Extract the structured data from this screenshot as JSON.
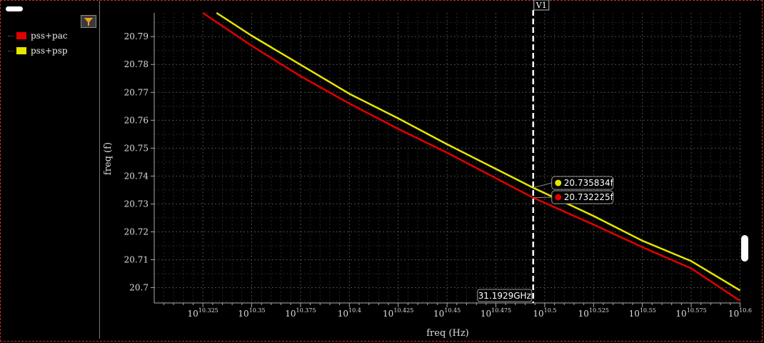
{
  "legend": {
    "items": [
      {
        "label": "pss+pac",
        "color": "#e00000"
      },
      {
        "label": "pss+psp",
        "color": "#e6e600"
      }
    ]
  },
  "chart_data": {
    "type": "line",
    "xlabel": "freq (Hz)",
    "ylabel": "freq (f)",
    "x_scale": "log10",
    "x_tick_base": "10",
    "x_ticks": [
      {
        "exp": 10.325,
        "label": "10.325"
      },
      {
        "exp": 10.35,
        "label": "10.35"
      },
      {
        "exp": 10.375,
        "label": "10.375"
      },
      {
        "exp": 10.4,
        "label": "10.4"
      },
      {
        "exp": 10.425,
        "label": "10.425"
      },
      {
        "exp": 10.45,
        "label": "10.45"
      },
      {
        "exp": 10.475,
        "label": "10.475"
      },
      {
        "exp": 10.5,
        "label": "10.5"
      },
      {
        "exp": 10.525,
        "label": "10.525"
      },
      {
        "exp": 10.55,
        "label": "10.55"
      },
      {
        "exp": 10.575,
        "label": "10.575"
      },
      {
        "exp": 10.6,
        "label": "10.6"
      }
    ],
    "xlim_exp": [
      10.3001,
      10.6002
    ],
    "y_ticks": [
      "20.79",
      "20.78",
      "20.77",
      "20.76",
      "20.75",
      "20.74",
      "20.73",
      "20.72",
      "20.71",
      "20.7"
    ],
    "y_tick_values": [
      20.79,
      20.78,
      20.77,
      20.76,
      20.75,
      20.74,
      20.73,
      20.72,
      20.71,
      20.7
    ],
    "ylim": [
      20.6945,
      20.7985
    ],
    "grid": true,
    "series": [
      {
        "name": "pss+pac",
        "color": "#e00000",
        "x_exp": [
          10.325,
          10.35,
          10.375,
          10.4,
          10.425,
          10.45,
          10.4941,
          10.525,
          10.55,
          10.575,
          10.6
        ],
        "values": [
          20.7985,
          20.7867,
          20.7758,
          20.766,
          20.7569,
          20.7484,
          20.73223,
          20.7226,
          20.7145,
          20.7069,
          20.6953
        ]
      },
      {
        "name": "pss+psp",
        "color": "#e6e600",
        "x_exp": [
          10.332,
          10.35,
          10.375,
          10.4,
          10.425,
          10.45,
          10.4941,
          10.525,
          10.55,
          10.575,
          10.6
        ],
        "values": [
          20.7985,
          20.7903,
          20.7799,
          20.7695,
          20.7607,
          20.7514,
          20.73583,
          20.7257,
          20.7168,
          20.7095,
          20.699
        ]
      }
    ],
    "marker": {
      "name": "V1",
      "x_exp": 10.4941,
      "x_readout": "31.1929GHz",
      "readouts": [
        {
          "series": "pss+psp",
          "value": 20.735834,
          "label": "20.735834f",
          "color": "#e6e600"
        },
        {
          "series": "pss+pac",
          "value": 20.732225,
          "label": "20.732225f",
          "color": "#e00000"
        }
      ]
    }
  }
}
